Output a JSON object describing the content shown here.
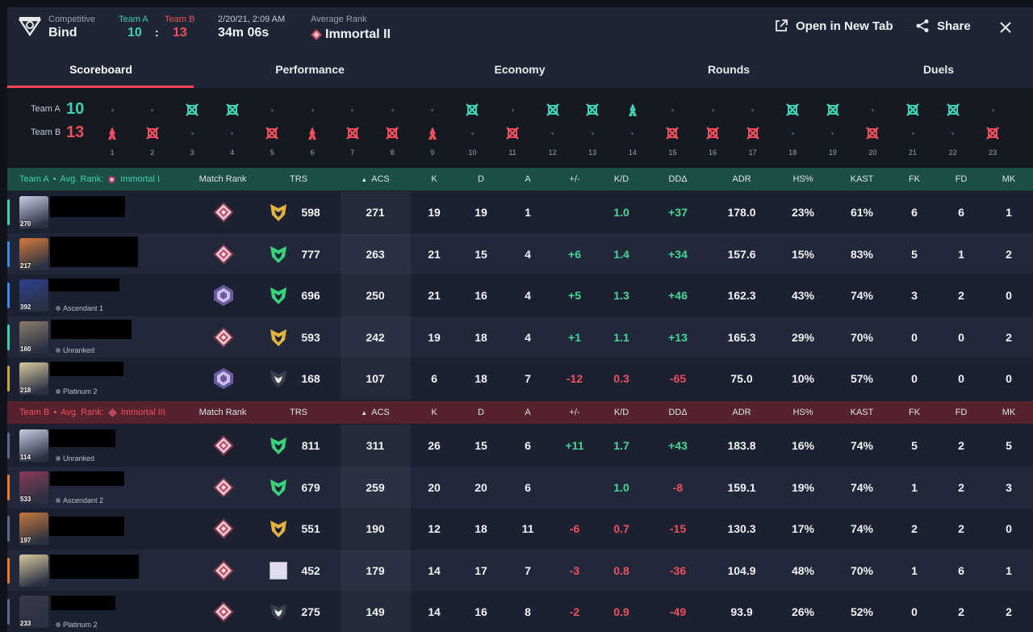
{
  "header": {
    "mode_label": "Competitive",
    "map": "Bind",
    "team_a_label": "Team A",
    "team_b_label": "Team B",
    "team_a_score": "10",
    "team_b_score": "13",
    "score_sep": ":",
    "date": "2/20/21, 2:09 AM",
    "duration": "34m 06s",
    "avg_rank_label": "Average Rank",
    "avg_rank": "Immortal II",
    "open_new_tab": "Open in New Tab",
    "share": "Share"
  },
  "tabs": [
    "Scoreboard",
    "Performance",
    "Economy",
    "Rounds",
    "Duels"
  ],
  "timeline": {
    "team_a_label": "Team A",
    "team_b_label": "Team B",
    "team_a_score": "10",
    "team_b_score": "13",
    "rounds": [
      "B",
      "B",
      "A",
      "A",
      "B",
      "B",
      "B",
      "B",
      "B",
      "A",
      "B",
      "A",
      "A",
      "A",
      "B",
      "B",
      "B",
      "A",
      "A",
      "B",
      "A",
      "A",
      "B"
    ],
    "special_rounds": [
      1,
      6,
      9,
      14
    ],
    "round_numbers": [
      "1",
      "2",
      "3",
      "4",
      "5",
      "6",
      "7",
      "8",
      "9",
      "10",
      "11",
      "12",
      "13",
      "14",
      "15",
      "16",
      "17",
      "18",
      "19",
      "20",
      "21",
      "22",
      "23"
    ]
  },
  "columns": {
    "match_rank": "Match Rank",
    "trs": "TRS",
    "acs": "ACS",
    "k": "K",
    "d": "D",
    "a": "A",
    "pm": "+/-",
    "kd": "K/D",
    "dd": "DDΔ",
    "adr": "ADR",
    "hs": "HS%",
    "kast": "KAST",
    "fk": "FK",
    "fd": "FD",
    "mk": "MK"
  },
  "team_a": {
    "label": "Team A",
    "sep": "•",
    "avg_rank_label": "Avg. Rank:",
    "avg_rank": "Immortal I",
    "players": [
      {
        "level": "270",
        "rank_text": "",
        "mr": "diamond",
        "trs_icon": "gold",
        "trs": "598",
        "acs": "271",
        "k": "19",
        "d": "19",
        "a": "1",
        "pm": "",
        "kd": "1.0",
        "dd": "+37",
        "adr": "178.0",
        "hs": "23%",
        "kast": "61%",
        "fk": "6",
        "fd": "6",
        "mk": "1",
        "pm_sign": "pos",
        "kd_sign": "pos",
        "dd_sign": "pos",
        "bar": "#3fd0b2",
        "av": "#c9cfe0"
      },
      {
        "level": "217",
        "rank_text": "",
        "mr": "diamond",
        "trs_icon": "green",
        "trs": "777",
        "acs": "263",
        "k": "21",
        "d": "15",
        "a": "4",
        "pm": "+6",
        "kd": "1.4",
        "dd": "+34",
        "adr": "157.6",
        "hs": "15%",
        "kast": "83%",
        "fk": "5",
        "fd": "1",
        "mk": "2",
        "pm_sign": "pos",
        "kd_sign": "pos",
        "dd_sign": "pos",
        "bar": "#3a8ee6",
        "av": "#d77a3a"
      },
      {
        "level": "392",
        "rank_text": "Ascendant 1",
        "mr": "ascendant",
        "trs_icon": "green",
        "trs": "696",
        "acs": "250",
        "k": "21",
        "d": "16",
        "a": "4",
        "pm": "+5",
        "kd": "1.3",
        "dd": "+46",
        "adr": "162.3",
        "hs": "43%",
        "kast": "74%",
        "fk": "3",
        "fd": "2",
        "mk": "0",
        "pm_sign": "pos",
        "kd_sign": "pos",
        "dd_sign": "pos",
        "bar": "#3a8ee6",
        "av": "#2c3f8c"
      },
      {
        "level": "160",
        "rank_text": "Unranked",
        "mr": "diamond",
        "trs_icon": "gold",
        "trs": "593",
        "acs": "242",
        "k": "19",
        "d": "18",
        "a": "4",
        "pm": "+1",
        "kd": "1.1",
        "dd": "+13",
        "adr": "165.3",
        "hs": "29%",
        "kast": "70%",
        "fk": "0",
        "fd": "0",
        "mk": "2",
        "pm_sign": "pos",
        "kd_sign": "pos",
        "dd_sign": "pos",
        "bar": "#3fd0b2",
        "av": "#8a7b6a"
      },
      {
        "level": "218",
        "rank_text": "Platinum 2",
        "mr": "ascendant",
        "trs_icon": "dark",
        "trs": "168",
        "acs": "107",
        "k": "6",
        "d": "18",
        "a": "7",
        "pm": "-12",
        "kd": "0.3",
        "dd": "-65",
        "adr": "75.0",
        "hs": "10%",
        "kast": "57%",
        "fk": "0",
        "fd": "0",
        "mk": "0",
        "pm_sign": "neg",
        "kd_sign": "neg",
        "dd_sign": "neg",
        "bar": "#c9a93a",
        "av": "#d9c9a0"
      }
    ]
  },
  "team_b": {
    "label": "Team B",
    "sep": "•",
    "avg_rank_label": "Avg. Rank:",
    "avg_rank": "Immortal III",
    "players": [
      {
        "level": "114",
        "rank_text": "Unranked",
        "mr": "diamond",
        "trs_icon": "green",
        "trs": "811",
        "acs": "311",
        "k": "26",
        "d": "15",
        "a": "6",
        "pm": "+11",
        "kd": "1.7",
        "dd": "+43",
        "adr": "183.8",
        "hs": "16%",
        "kast": "74%",
        "fk": "5",
        "fd": "2",
        "mk": "5",
        "pm_sign": "pos",
        "kd_sign": "pos",
        "dd_sign": "pos",
        "bar": "#5b6b8c",
        "av": "#c9cfe0"
      },
      {
        "level": "533",
        "rank_text": "Ascendant 2",
        "mr": "diamond",
        "trs_icon": "green",
        "trs": "679",
        "acs": "259",
        "k": "20",
        "d": "20",
        "a": "6",
        "pm": "",
        "kd": "1.0",
        "dd": "-8",
        "adr": "159.1",
        "hs": "19%",
        "kast": "74%",
        "fk": "1",
        "fd": "2",
        "mk": "3",
        "pm_sign": "pos",
        "kd_sign": "pos",
        "dd_sign": "neg",
        "bar": "#f07a2a",
        "av": "#8a3a5a"
      },
      {
        "level": "197",
        "rank_text": "",
        "mr": "diamond",
        "trs_icon": "gold",
        "trs": "551",
        "acs": "190",
        "k": "12",
        "d": "18",
        "a": "11",
        "pm": "-6",
        "kd": "0.7",
        "dd": "-15",
        "adr": "130.3",
        "hs": "17%",
        "kast": "74%",
        "fk": "2",
        "fd": "2",
        "mk": "0",
        "pm_sign": "neg",
        "kd_sign": "neg",
        "dd_sign": "neg",
        "bar": "#5b6b8c",
        "av": "#c8783a"
      },
      {
        "level": "",
        "rank_text": "",
        "mr": "diamond",
        "trs_icon": "broken",
        "trs": "452",
        "acs": "179",
        "k": "14",
        "d": "17",
        "a": "7",
        "pm": "-3",
        "kd": "0.8",
        "dd": "-36",
        "adr": "104.9",
        "hs": "48%",
        "kast": "70%",
        "fk": "1",
        "fd": "6",
        "mk": "1",
        "pm_sign": "neg",
        "kd_sign": "neg",
        "dd_sign": "neg",
        "bar": "#f07a2a",
        "av": "#d9c9a0"
      },
      {
        "level": "233",
        "rank_text": "Platinum 2",
        "mr": "diamond",
        "trs_icon": "dark",
        "trs": "275",
        "acs": "149",
        "k": "14",
        "d": "16",
        "a": "8",
        "pm": "-2",
        "kd": "0.9",
        "dd": "-49",
        "adr": "93.9",
        "hs": "26%",
        "kast": "52%",
        "fk": "0",
        "fd": "2",
        "mk": "2",
        "pm_sign": "neg",
        "kd_sign": "neg",
        "dd_sign": "neg",
        "bar": "#5b6b8c",
        "av": "#3a3a4a"
      }
    ]
  },
  "colors": {
    "team_a": "#3fd0b2",
    "team_b": "#f0505e",
    "accent": "#ff4655",
    "positive": "#48d597",
    "negative": "#f0505e"
  }
}
